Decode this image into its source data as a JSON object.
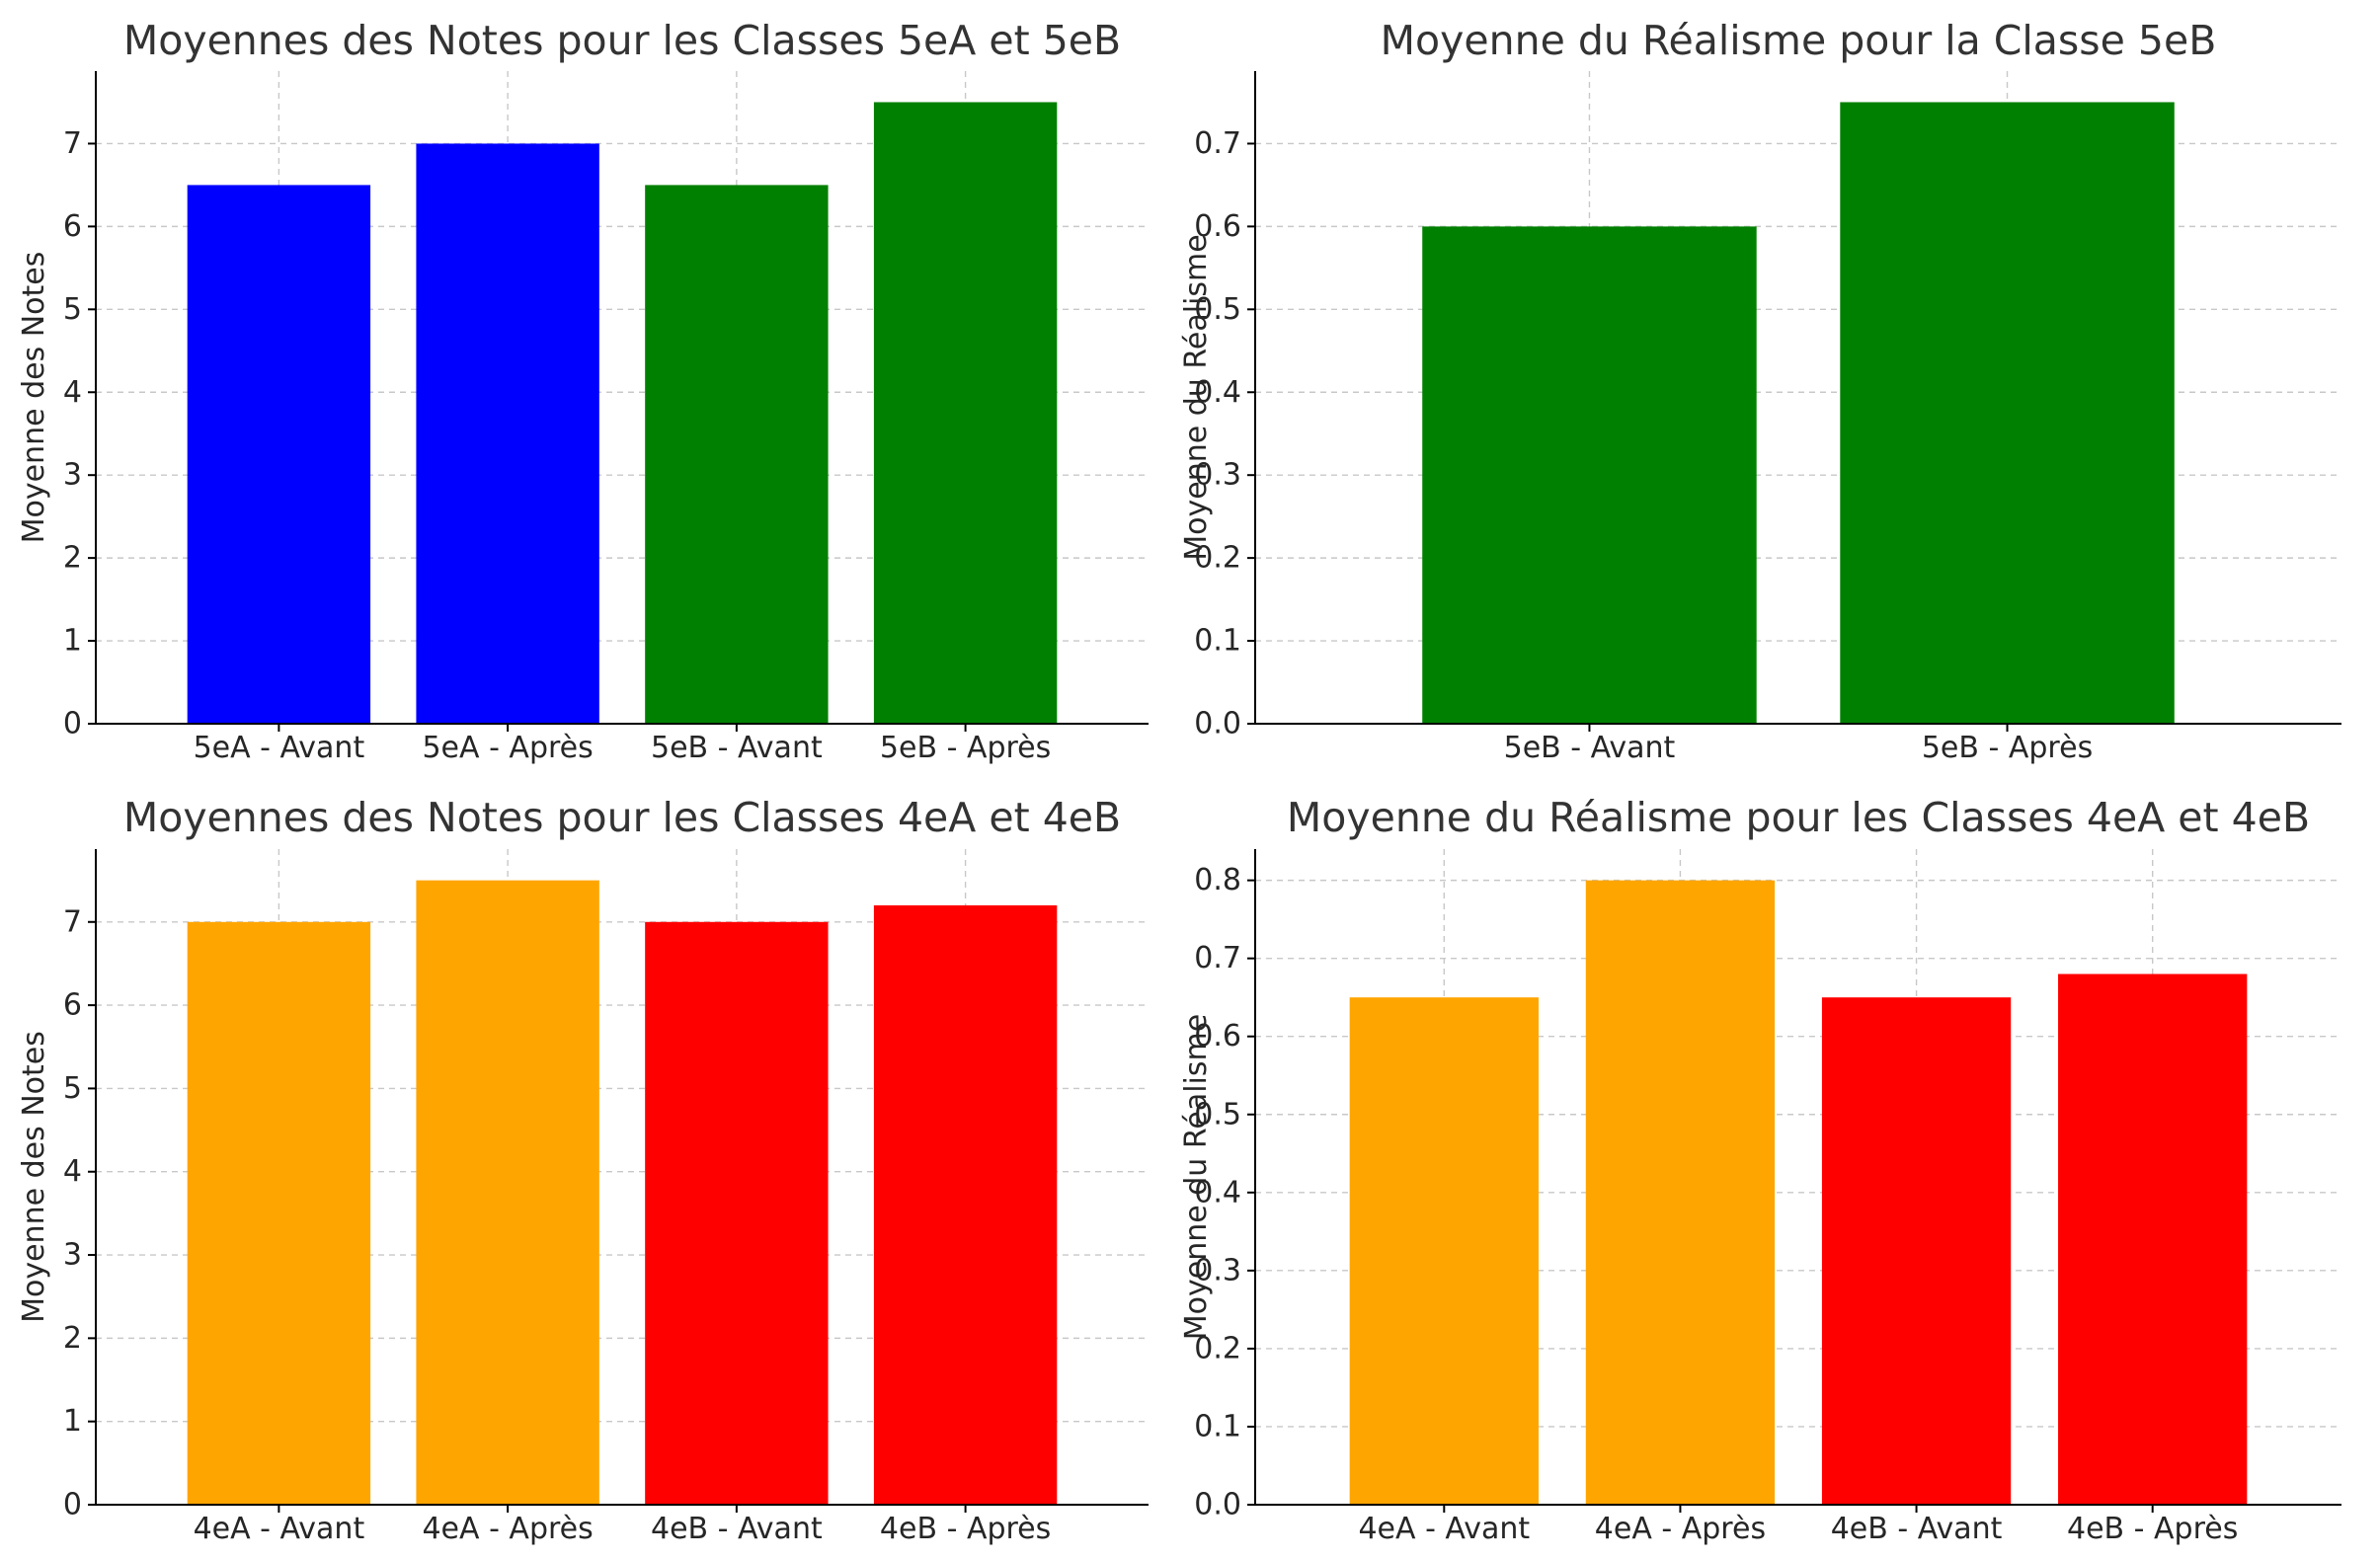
{
  "chart_data": [
    {
      "id": "p1",
      "type": "bar",
      "title": "Moyennes des Notes pour les Classes 5eA et 5eB",
      "xlabel": "",
      "ylabel": "Moyenne des Notes",
      "categories": [
        "5eA - Avant",
        "5eA - Après",
        "5eB - Avant",
        "5eB - Après"
      ],
      "values": [
        6.5,
        7.0,
        6.5,
        7.5
      ],
      "colors": [
        "#0000ff",
        "#0000ff",
        "#008000",
        "#008000"
      ],
      "ylim": [
        0,
        7.875
      ],
      "yticks": [
        0,
        1,
        2,
        3,
        4,
        5,
        6,
        7
      ],
      "ytick_labels": [
        "0",
        "1",
        "2",
        "3",
        "4",
        "5",
        "6",
        "7"
      ],
      "grid": true
    },
    {
      "id": "p2",
      "type": "bar",
      "title": "Moyenne du Réalisme pour la Classe 5eB",
      "xlabel": "",
      "ylabel": "Moyenne du Réalisme",
      "categories": [
        "5eB - Avant",
        "5eB - Après"
      ],
      "values": [
        0.6,
        0.75
      ],
      "colors": [
        "#008000",
        "#008000"
      ],
      "ylim": [
        0,
        0.7875
      ],
      "yticks": [
        0,
        0.1,
        0.2,
        0.3,
        0.4,
        0.5,
        0.6,
        0.7
      ],
      "ytick_labels": [
        "0.0",
        "0.1",
        "0.2",
        "0.3",
        "0.4",
        "0.5",
        "0.6",
        "0.7"
      ],
      "grid": true
    },
    {
      "id": "p3",
      "type": "bar",
      "title": "Moyennes des Notes pour les Classes 4eA et 4eB",
      "xlabel": "",
      "ylabel": "Moyenne des Notes",
      "categories": [
        "4eA - Avant",
        "4eA - Après",
        "4eB - Avant",
        "4eB - Après"
      ],
      "values": [
        7.0,
        7.5,
        7.0,
        7.2
      ],
      "colors": [
        "#ffa500",
        "#ffa500",
        "#ff0000",
        "#ff0000"
      ],
      "ylim": [
        0,
        7.875
      ],
      "yticks": [
        0,
        1,
        2,
        3,
        4,
        5,
        6,
        7
      ],
      "ytick_labels": [
        "0",
        "1",
        "2",
        "3",
        "4",
        "5",
        "6",
        "7"
      ],
      "grid": true
    },
    {
      "id": "p4",
      "type": "bar",
      "title": "Moyenne du Réalisme pour les Classes 4eA et 4eB",
      "xlabel": "",
      "ylabel": "Moyenne du Réalisme",
      "categories": [
        "4eA - Avant",
        "4eA - Après",
        "4eB - Avant",
        "4eB - Après"
      ],
      "values": [
        0.65,
        0.8,
        0.65,
        0.68
      ],
      "colors": [
        "#ffa500",
        "#ffa500",
        "#ff0000",
        "#ff0000"
      ],
      "ylim": [
        0,
        0.84
      ],
      "yticks": [
        0,
        0.1,
        0.2,
        0.3,
        0.4,
        0.5,
        0.6,
        0.7,
        0.8
      ],
      "ytick_labels": [
        "0.0",
        "0.1",
        "0.2",
        "0.3",
        "0.4",
        "0.5",
        "0.6",
        "0.7",
        "0.8"
      ],
      "grid": true
    }
  ]
}
